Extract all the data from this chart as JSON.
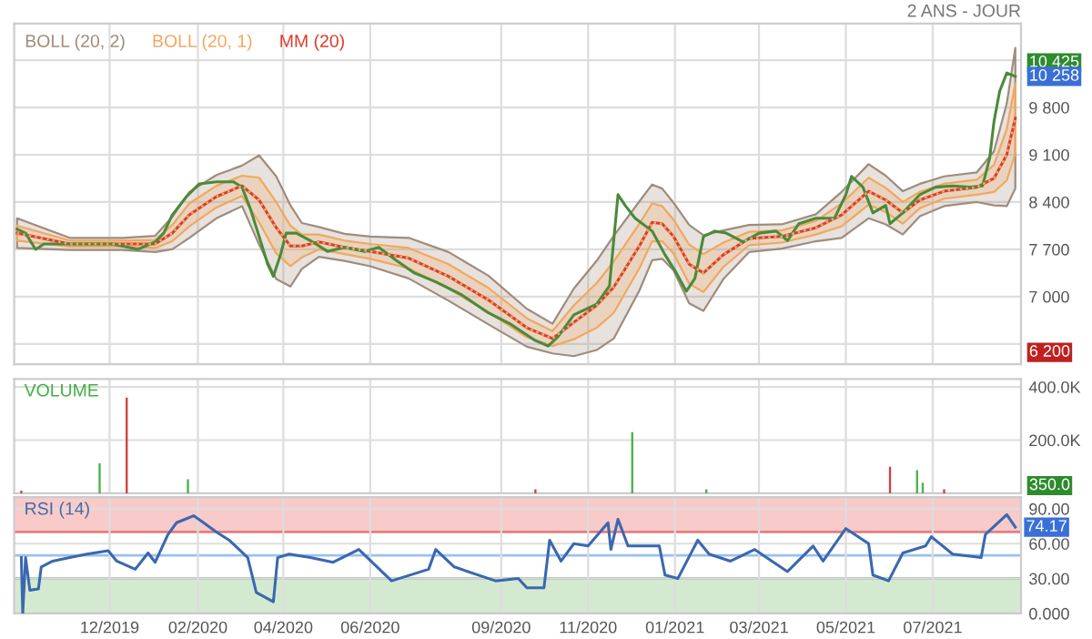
{
  "chart_data": [
    {
      "type": "line",
      "subtitle": "2 ANS - JOUR",
      "legend": "top left",
      "grid": true,
      "tick_labels": "y",
      "xlim": [
        "2019-09-25",
        "2021-09-01"
      ],
      "ylim": [
        6000,
        11040
      ],
      "xticks": [
        {
          "value": "2019-12-01",
          "label": null
        },
        {
          "value": "2020-02-01",
          "label": null
        },
        {
          "value": "2020-04-01",
          "label": null
        },
        {
          "value": "2020-06-01",
          "label": null
        },
        {
          "value": "2020-09-01",
          "label": null
        },
        {
          "value": "2020-11-01",
          "label": null
        },
        {
          "value": "2021-01-01",
          "label": null
        },
        {
          "value": "2021-03-01",
          "label": null
        },
        {
          "value": "2021-05-01",
          "label": null
        },
        {
          "value": "2021-07-01",
          "label": null
        }
      ],
      "yticks": [
        {
          "value": 6300,
          "label": null
        },
        {
          "value": 7000,
          "label": "7 000"
        },
        {
          "value": 7700,
          "label": "7 700"
        },
        {
          "value": 8400,
          "label": "8 400"
        },
        {
          "value": 9100,
          "label": "9 100"
        },
        {
          "value": 9800,
          "label": "9 800"
        },
        {
          "value": 10500,
          "label": null
        }
      ],
      "annotations": [
        "10 425",
        "10 258",
        "6 200"
      ],
      "series": [
        {
          "name": "BOLL (20, 2)",
          "type": "line",
          "line_style": "dotted",
          "color": "#a08c7c",
          "values": [
            7940,
            7780,
            7780,
            7780,
            7940,
            8210,
            8480,
            8640,
            8430,
            8020,
            7750,
            7750,
            7810,
            7730,
            7670,
            7570,
            7300,
            6950,
            6540,
            6380,
            6620,
            6870,
            7140,
            7750,
            8100,
            8080,
            7890,
            7480,
            7350,
            7620,
            7860,
            7890,
            8020,
            8210,
            8560,
            8430,
            8240,
            8430,
            8560,
            8620,
            8750,
            9100,
            9640
          ],
          "x": [
            "2019-09-27",
            "2019-11-03",
            "2019-12-10",
            "2020-01-02",
            "2020-01-14",
            "2020-01-26",
            "2020-02-14",
            "2020-03-03",
            "2020-03-15",
            "2020-03-27",
            "2020-04-06",
            "2020-04-14",
            "2020-04-26",
            "2020-05-14",
            "2020-06-01",
            "2020-06-28",
            "2020-07-26",
            "2020-08-23",
            "2020-09-19",
            "2020-10-07",
            "2020-10-22",
            "2020-11-07",
            "2020-11-19",
            "2020-12-07",
            "2020-12-16",
            "2020-12-23",
            "2020-12-31",
            "2021-01-11",
            "2021-01-21",
            "2021-02-04",
            "2021-02-22",
            "2021-03-17",
            "2021-04-10",
            "2021-04-28",
            "2021-05-17",
            "2021-05-29",
            "2021-06-10",
            "2021-06-22",
            "2021-07-09",
            "2021-08-01",
            "2021-08-13",
            "2021-08-22",
            "2021-08-28"
          ],
          "upper": [
            8160,
            7870,
            7870,
            7900,
            8180,
            8550,
            8800,
            8940,
            9090,
            8780,
            8350,
            8090,
            8030,
            7930,
            7890,
            7870,
            7660,
            7310,
            6820,
            6600,
            7120,
            7530,
            7900,
            8410,
            8660,
            8600,
            8390,
            8060,
            7910,
            7980,
            8060,
            8070,
            8220,
            8550,
            8960,
            8790,
            8560,
            8670,
            8780,
            8840,
            9150,
            9860,
            10680
          ],
          "lower": [
            7720,
            7690,
            7690,
            7660,
            7700,
            7870,
            8160,
            8340,
            7770,
            7260,
            7150,
            7410,
            7590,
            7530,
            7450,
            7270,
            6940,
            6590,
            6260,
            6160,
            6120,
            6210,
            6380,
            7090,
            7540,
            7560,
            7390,
            6900,
            6790,
            7260,
            7660,
            7710,
            7820,
            7870,
            8160,
            8070,
            7920,
            8190,
            8340,
            8400,
            8350,
            8340,
            8600
          ]
        },
        {
          "name": "BOLL (20, 1)",
          "type": "line",
          "line_style": "dotted",
          "color": "#f0a860",
          "values": [
            7940,
            7780,
            7780,
            7780,
            7940,
            8210,
            8480,
            8640,
            8430,
            8020,
            7750,
            7750,
            7810,
            7730,
            7670,
            7570,
            7300,
            6950,
            6540,
            6380,
            6620,
            6870,
            7140,
            7750,
            8100,
            8080,
            7890,
            7480,
            7350,
            7620,
            7860,
            7890,
            8020,
            8210,
            8560,
            8430,
            8240,
            8430,
            8560,
            8620,
            8750,
            9100,
            9640
          ],
          "x": [
            "2019-09-27",
            "2019-11-03",
            "2019-12-10",
            "2020-01-02",
            "2020-01-14",
            "2020-01-26",
            "2020-02-14",
            "2020-03-03",
            "2020-03-15",
            "2020-03-27",
            "2020-04-06",
            "2020-04-14",
            "2020-04-26",
            "2020-05-14",
            "2020-06-01",
            "2020-06-28",
            "2020-07-26",
            "2020-08-23",
            "2020-09-19",
            "2020-10-07",
            "2020-10-22",
            "2020-11-07",
            "2020-11-19",
            "2020-12-07",
            "2020-12-16",
            "2020-12-23",
            "2020-12-31",
            "2021-01-11",
            "2021-01-21",
            "2021-02-04",
            "2021-02-22",
            "2021-03-17",
            "2021-04-10",
            "2021-04-28",
            "2021-05-17",
            "2021-05-29",
            "2021-06-10",
            "2021-06-22",
            "2021-07-09",
            "2021-08-01",
            "2021-08-13",
            "2021-08-22",
            "2021-08-28"
          ],
          "upper": [
            8050,
            7830,
            7830,
            7840,
            8060,
            8380,
            8640,
            8790,
            8760,
            8400,
            8050,
            7920,
            7920,
            7830,
            7780,
            7720,
            7480,
            7130,
            6680,
            6490,
            6870,
            7200,
            7520,
            8080,
            8380,
            8340,
            8140,
            7770,
            7630,
            7800,
            7960,
            7980,
            8120,
            8380,
            8760,
            8610,
            8400,
            8550,
            8670,
            8730,
            8950,
            9480,
            10160
          ],
          "lower": [
            7830,
            7740,
            7740,
            7720,
            7820,
            8040,
            8320,
            8490,
            8100,
            7640,
            7450,
            7580,
            7700,
            7630,
            7560,
            7420,
            7120,
            6770,
            6400,
            6270,
            6370,
            6540,
            6760,
            7420,
            7820,
            7820,
            7640,
            7190,
            7070,
            7440,
            7760,
            7800,
            7920,
            8040,
            8360,
            8250,
            8080,
            8310,
            8450,
            8510,
            8550,
            8720,
            9120
          ]
        },
        {
          "name": "MM (20)",
          "type": "line",
          "color": "#e03a2a",
          "x": [
            "2019-09-27",
            "2019-11-03",
            "2019-12-10",
            "2020-01-02",
            "2020-01-14",
            "2020-01-26",
            "2020-02-14",
            "2020-03-03",
            "2020-03-15",
            "2020-03-27",
            "2020-04-06",
            "2020-04-14",
            "2020-04-26",
            "2020-05-14",
            "2020-06-01",
            "2020-06-28",
            "2020-07-26",
            "2020-08-23",
            "2020-09-19",
            "2020-10-07",
            "2020-10-22",
            "2020-11-07",
            "2020-11-19",
            "2020-12-07",
            "2020-12-16",
            "2020-12-23",
            "2020-12-31",
            "2021-01-11",
            "2021-01-21",
            "2021-02-04",
            "2021-02-22",
            "2021-03-17",
            "2021-04-10",
            "2021-04-28",
            "2021-05-17",
            "2021-05-29",
            "2021-06-10",
            "2021-06-22",
            "2021-07-09",
            "2021-08-01",
            "2021-08-13",
            "2021-08-22",
            "2021-08-28"
          ],
          "values": [
            7940,
            7780,
            7780,
            7780,
            7940,
            8210,
            8480,
            8640,
            8430,
            8020,
            7750,
            7750,
            7810,
            7730,
            7670,
            7570,
            7300,
            6950,
            6540,
            6380,
            6620,
            6870,
            7140,
            7750,
            8100,
            8080,
            7890,
            7480,
            7350,
            7620,
            7860,
            7890,
            8020,
            8210,
            8560,
            8430,
            8240,
            8430,
            8560,
            8620,
            8750,
            9100,
            9640
          ]
        },
        {
          "type": "line",
          "color": "#4a8a3a",
          "x": [
            "2019-09-27",
            "2019-10-03",
            "2019-10-10",
            "2019-10-16",
            "2019-10-28",
            "2019-11-15",
            "2019-12-03",
            "2019-12-21",
            "2020-01-02",
            "2020-01-08",
            "2020-01-14",
            "2020-01-24",
            "2020-02-02",
            "2020-02-14",
            "2020-02-26",
            "2020-03-03",
            "2020-03-09",
            "2020-03-15",
            "2020-03-21",
            "2020-03-25",
            "2020-03-30",
            "2020-04-03",
            "2020-04-10",
            "2020-04-20",
            "2020-05-02",
            "2020-05-14",
            "2020-05-28",
            "2020-06-07",
            "2020-06-19",
            "2020-07-02",
            "2020-07-17",
            "2020-08-04",
            "2020-08-23",
            "2020-09-07",
            "2020-09-25",
            "2020-10-04",
            "2020-10-11",
            "2020-10-22",
            "2020-11-07",
            "2020-11-16",
            "2020-11-22",
            "2020-11-27",
            "2020-12-04",
            "2020-12-16",
            "2020-12-25",
            "2021-01-02",
            "2021-01-09",
            "2021-01-15",
            "2021-01-21",
            "2021-01-29",
            "2021-02-06",
            "2021-02-18",
            "2021-03-01",
            "2021-03-13",
            "2021-03-21",
            "2021-03-29",
            "2021-04-10",
            "2021-04-23",
            "2021-05-01",
            "2021-05-05",
            "2021-05-13",
            "2021-05-20",
            "2021-05-29",
            "2021-06-01",
            "2021-06-10",
            "2021-06-22",
            "2021-07-03",
            "2021-07-15",
            "2021-07-27",
            "2021-08-05",
            "2021-08-10",
            "2021-08-13",
            "2021-08-17",
            "2021-08-22",
            "2021-08-28"
          ],
          "values": [
            8000,
            7940,
            7700,
            7780,
            7780,
            7780,
            7780,
            7700,
            7810,
            7940,
            8210,
            8480,
            8670,
            8700,
            8700,
            8620,
            8290,
            7890,
            7480,
            7300,
            7620,
            7940,
            7940,
            7830,
            7670,
            7730,
            7670,
            7730,
            7540,
            7350,
            7220,
            7030,
            6760,
            6600,
            6350,
            6270,
            6410,
            6730,
            6890,
            7160,
            8510,
            8350,
            8160,
            7970,
            7620,
            7350,
            7080,
            7270,
            7890,
            7970,
            7940,
            7810,
            7940,
            7970,
            7830,
            8080,
            8160,
            8160,
            8510,
            8780,
            8620,
            8240,
            8350,
            8080,
            8240,
            8510,
            8620,
            8640,
            8620,
            8640,
            9050,
            9590,
            10040,
            10310,
            10258
          ]
        }
      ]
    },
    {
      "type": "bar",
      "title": "VOLUME",
      "grid": true,
      "tick_labels": "y",
      "xlim": [
        "2019-09-25",
        "2021-09-01"
      ],
      "ylim": [
        0,
        430000
      ],
      "xticks": [
        {
          "value": "2019-12-01",
          "label": null
        },
        {
          "value": "2020-02-01",
          "label": null
        },
        {
          "value": "2020-04-01",
          "label": null
        },
        {
          "value": "2020-06-01",
          "label": null
        },
        {
          "value": "2020-09-01",
          "label": null
        },
        {
          "value": "2020-11-01",
          "label": null
        },
        {
          "value": "2021-01-01",
          "label": null
        },
        {
          "value": "2021-03-01",
          "label": null
        },
        {
          "value": "2021-05-01",
          "label": null
        },
        {
          "value": "2021-07-01",
          "label": null
        }
      ],
      "yticks": [
        {
          "value": 200000,
          "label": "200.0K"
        },
        {
          "value": 400000,
          "label": "400.0K"
        }
      ],
      "annotations": [
        "350.0"
      ],
      "x": [
        "2019-09-30",
        "2019-11-24",
        "2019-12-13",
        "2020-01-25",
        "2020-09-25",
        "2020-12-02",
        "2021-01-23",
        "2021-06-01",
        "2021-06-20",
        "2021-06-24",
        "2021-07-09"
      ],
      "values": [
        10000,
        113000,
        360000,
        53000,
        15000,
        230000,
        15000,
        100000,
        87000,
        40000,
        15000
      ],
      "colors": [
        "#d04040",
        "#4cb04c",
        "#d04040",
        "#4cb04c",
        "#d04040",
        "#4cb04c",
        "#4cb04c",
        "#d04040",
        "#4cb04c",
        "#4cb04c",
        "#d04040"
      ]
    },
    {
      "type": "line",
      "title": "RSI (14)",
      "grid": true,
      "xlim": [
        "2019-09-25",
        "2021-09-01"
      ],
      "ylim": [
        0,
        100
      ],
      "xticks": [
        {
          "value": "2019-12-01",
          "label": "12/2019"
        },
        {
          "value": "2020-02-01",
          "label": "02/2020"
        },
        {
          "value": "2020-04-01",
          "label": "04/2020"
        },
        {
          "value": "2020-06-01",
          "label": "06/2020"
        },
        {
          "value": "2020-09-01",
          "label": "09/2020"
        },
        {
          "value": "2020-11-01",
          "label": "11/2020"
        },
        {
          "value": "2021-01-01",
          "label": "01/2021"
        },
        {
          "value": "2021-03-01",
          "label": "03/2021"
        },
        {
          "value": "2021-05-01",
          "label": "05/2021"
        },
        {
          "value": "2021-07-01",
          "label": "07/2021"
        }
      ],
      "yticks": [
        {
          "value": 0,
          "label": "0.000"
        },
        {
          "value": 30,
          "label": "30.00"
        },
        {
          "value": 60,
          "label": "60.00"
        },
        {
          "value": 90,
          "label": "90.00"
        }
      ],
      "bands": [
        {
          "axis": "y",
          "from": 70,
          "to": 100,
          "color": "#f8caca"
        },
        {
          "axis": "y",
          "from": 0,
          "to": 30,
          "color": "#d4ead0"
        }
      ],
      "ref_lines": [
        {
          "axis": "y",
          "value": 70,
          "color": "#e08080"
        },
        {
          "axis": "y",
          "value": 50,
          "color": "#9cc0ec"
        },
        {
          "axis": "y",
          "value": 30,
          "color": "#60a060"
        }
      ],
      "annotations": [
        {
          "text": "74.17",
          "x": "2021-08-28",
          "y": 74.17
        }
      ],
      "series": [
        {
          "type": "line",
          "color": "#3a68b0",
          "x": [
            "2019-09-30",
            "2019-10-01",
            "2019-10-03",
            "2019-10-06",
            "2019-10-12",
            "2019-10-14",
            "2019-10-22",
            "2019-11-03",
            "2019-11-15",
            "2019-11-30",
            "2019-12-06",
            "2019-12-19",
            "2019-12-28",
            "2020-01-02",
            "2020-01-11",
            "2020-01-17",
            "2020-01-29",
            "2020-02-05",
            "2020-02-14",
            "2020-02-23",
            "2020-03-07",
            "2020-03-13",
            "2020-03-25",
            "2020-03-28",
            "2020-04-05",
            "2020-04-20",
            "2020-05-06",
            "2020-05-24",
            "2020-06-16",
            "2020-07-12",
            "2020-07-17",
            "2020-07-30",
            "2020-08-28",
            "2020-09-13",
            "2020-09-19",
            "2020-10-01",
            "2020-10-05",
            "2020-10-13",
            "2020-10-22",
            "2020-11-01",
            "2020-11-15",
            "2020-11-17",
            "2020-11-22",
            "2020-11-29",
            "2020-12-21",
            "2020-12-25",
            "2021-01-03",
            "2021-01-17",
            "2021-01-25",
            "2021-02-09",
            "2021-02-26",
            "2021-03-21",
            "2021-04-08",
            "2021-04-15",
            "2021-05-01",
            "2021-05-17",
            "2021-05-20",
            "2021-05-31",
            "2021-06-10",
            "2021-06-26",
            "2021-06-30",
            "2021-07-15",
            "2021-08-04",
            "2021-08-07",
            "2021-08-22",
            "2021-08-28"
          ],
          "values": [
            48,
            0,
            48,
            20,
            21,
            40,
            45,
            48,
            51,
            54,
            45,
            38,
            52,
            44,
            68,
            78,
            84,
            78,
            70,
            63,
            48,
            18,
            10,
            48,
            51,
            48,
            44,
            55,
            28,
            38,
            55,
            40,
            28,
            30,
            22,
            22,
            63,
            45,
            60,
            58,
            78,
            55,
            81,
            58,
            58,
            33,
            30,
            63,
            51,
            45,
            55,
            36,
            58,
            45,
            73,
            60,
            33,
            28,
            52,
            58,
            66,
            51,
            48,
            68,
            85,
            74.17
          ]
        }
      ]
    }
  ]
}
